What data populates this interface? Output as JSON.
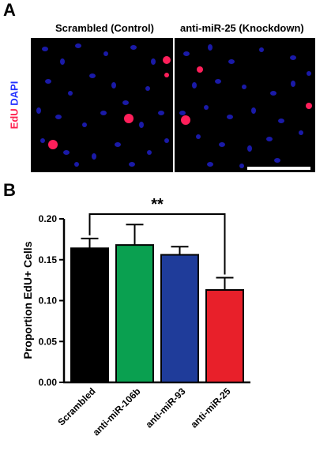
{
  "panel_a": {
    "letter": "A",
    "label_edu": "EdU",
    "label_dapi": "DAPI",
    "colors": {
      "edu": "#ff1f4d",
      "dapi": "#2432ff",
      "background": "#000000"
    },
    "images": [
      {
        "title": "Scrambled (Control)"
      },
      {
        "title": "anti-miR-25 (Knockdown)"
      }
    ]
  },
  "panel_b": {
    "letter": "B",
    "significance": "**"
  },
  "chart_data": {
    "type": "bar",
    "categories": [
      "Scrambled",
      "anti-miR-106b",
      "anti-miR-93",
      "anti-miR-25"
    ],
    "values": [
      0.164,
      0.168,
      0.156,
      0.113
    ],
    "errors": [
      0.012,
      0.025,
      0.01,
      0.015
    ],
    "colors": [
      "#000000",
      "#0aa050",
      "#1f3c9a",
      "#e8202a"
    ],
    "ylabel": "Proportion EdU+ Cells",
    "xlabel": "",
    "ylim": [
      0,
      0.2
    ],
    "yticks": [
      "0.00",
      "0.05",
      "0.10",
      "0.15",
      "0.20"
    ],
    "significance": {
      "label": "**",
      "from": "Scrambled",
      "to": "anti-miR-25"
    }
  }
}
